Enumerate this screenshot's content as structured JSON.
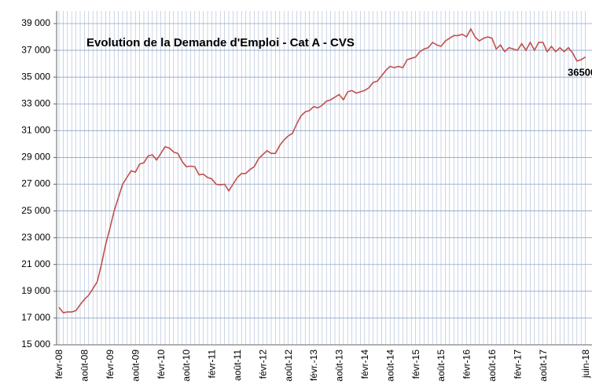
{
  "chart_data": {
    "type": "line",
    "title": "Evolution de la Demande d'Emploi - Cat A - CVS",
    "annotation": "36500",
    "categories": [
      "févr-08",
      null,
      null,
      null,
      null,
      null,
      "août-08",
      null,
      null,
      null,
      null,
      null,
      "févr-09",
      null,
      null,
      null,
      null,
      null,
      "août-09",
      null,
      null,
      null,
      null,
      null,
      "févr-10",
      null,
      null,
      null,
      null,
      null,
      "août-10",
      null,
      null,
      null,
      null,
      null,
      "févr-11",
      null,
      null,
      null,
      null,
      null,
      "août-11",
      null,
      null,
      null,
      null,
      null,
      "févr-12",
      null,
      null,
      null,
      null,
      null,
      "août-12",
      null,
      null,
      null,
      null,
      null,
      "févr.-13",
      null,
      null,
      null,
      null,
      null,
      "août-13",
      null,
      null,
      null,
      null,
      null,
      "févr-14",
      null,
      null,
      null,
      null,
      null,
      "août-14",
      null,
      null,
      null,
      null,
      null,
      "févr-15",
      null,
      null,
      null,
      null,
      null,
      "août-15",
      null,
      null,
      null,
      null,
      null,
      "févr-16",
      null,
      null,
      null,
      null,
      null,
      "août-16",
      null,
      null,
      null,
      null,
      null,
      "févr-17",
      null,
      null,
      null,
      null,
      null,
      "août-17",
      null,
      null,
      null,
      null,
      null,
      null,
      null,
      null,
      null,
      "juin-18"
    ],
    "series": [
      {
        "name": "Cat A - CVS",
        "color": "#c0504d",
        "values": [
          17800,
          17400,
          17450,
          17450,
          17550,
          18000,
          18400,
          18700,
          19200,
          19700,
          21000,
          22500,
          23700,
          25000,
          26000,
          27000,
          27500,
          28000,
          27900,
          28500,
          28600,
          29100,
          29200,
          28800,
          29300,
          29800,
          29700,
          29400,
          29300,
          28700,
          28300,
          28350,
          28300,
          27700,
          27750,
          27500,
          27400,
          27000,
          26950,
          27000,
          26500,
          27000,
          27500,
          27800,
          27800,
          28100,
          28300,
          28900,
          29200,
          29500,
          29300,
          29300,
          29900,
          30300,
          30600,
          30800,
          31500,
          32100,
          32400,
          32500,
          32800,
          32700,
          32900,
          33200,
          33300,
          33500,
          33700,
          33300,
          33900,
          34000,
          33800,
          33900,
          34000,
          34200,
          34600,
          34700,
          35100,
          35500,
          35800,
          35700,
          35800,
          35700,
          36300,
          36400,
          36500,
          36900,
          37100,
          37200,
          37600,
          37400,
          37300,
          37700,
          37900,
          38100,
          38100,
          38200,
          38000,
          38600,
          38000,
          37700,
          37900,
          38000,
          37900,
          37100,
          37400,
          36900,
          37200,
          37100,
          37000,
          37500,
          37000,
          37600,
          37000,
          37600,
          37600,
          36900,
          37300,
          36900,
          37200,
          36900,
          37200,
          36800,
          36200,
          36300,
          36500
        ]
      }
    ],
    "ylim": [
      15000,
      39000
    ],
    "yticks": [
      {
        "value": 15000,
        "label": "15 000"
      },
      {
        "value": 17000,
        "label": "17 000"
      },
      {
        "value": 19000,
        "label": "19 000"
      },
      {
        "value": 21000,
        "label": "21 000"
      },
      {
        "value": 23000,
        "label": "23 000"
      },
      {
        "value": 25000,
        "label": "25 000"
      },
      {
        "value": 27000,
        "label": "27 000"
      },
      {
        "value": 29000,
        "label": "29 000"
      },
      {
        "value": 31000,
        "label": "31 000"
      },
      {
        "value": 33000,
        "label": "33 000"
      },
      {
        "value": 35000,
        "label": "35 000"
      },
      {
        "value": 37000,
        "label": "37 000"
      },
      {
        "value": 39000,
        "label": "39 000"
      }
    ],
    "grid": true
  }
}
